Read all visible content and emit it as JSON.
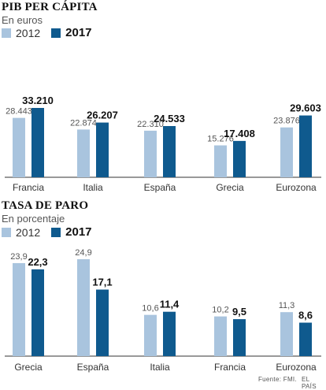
{
  "colors": {
    "c2012": "#a9c4de",
    "c2017": "#0f5a8e",
    "axis": "#333333"
  },
  "legend": {
    "label_2012": "2012",
    "label_2017": "2017"
  },
  "footer": {
    "source": "Fuente: FMI.",
    "credit": "EL PAÍS"
  },
  "chart_data": [
    {
      "type": "bar",
      "title": "PIB PER CÁPITA",
      "subtitle": "En euros",
      "categories": [
        "Francia",
        "Italia",
        "España",
        "Grecia",
        "Eurozona"
      ],
      "series": [
        {
          "name": "2012",
          "values": [
            28443,
            22874,
            22310,
            15276,
            23876
          ],
          "labels": [
            "28.443",
            "22.874",
            "22.310",
            "15.276",
            "23.876"
          ]
        },
        {
          "name": "2017",
          "values": [
            33210,
            26207,
            24533,
            17408,
            29603
          ],
          "labels": [
            "33.210",
            "26.207",
            "24.533",
            "17.408",
            "29.603"
          ]
        }
      ],
      "ylim": [
        0,
        33210
      ],
      "legend_position": "top-left",
      "grid": false
    },
    {
      "type": "bar",
      "title": "TASA DE PARO",
      "subtitle": "En porcentaje",
      "categories": [
        "Grecia",
        "España",
        "Italia",
        "Francia",
        "Eurozona"
      ],
      "series": [
        {
          "name": "2012",
          "values": [
            23.9,
            24.9,
            10.6,
            10.2,
            11.3
          ],
          "labels": [
            "23,9",
            "24,9",
            "10,6",
            "10,2",
            "11,3"
          ]
        },
        {
          "name": "2017",
          "values": [
            22.3,
            17.1,
            11.4,
            9.5,
            8.6
          ],
          "labels": [
            "22,3",
            "17,1",
            "11,4",
            "9,5",
            "8,6"
          ]
        }
      ],
      "ylim": [
        0,
        24.9
      ],
      "legend_position": "top-left",
      "grid": false
    }
  ]
}
